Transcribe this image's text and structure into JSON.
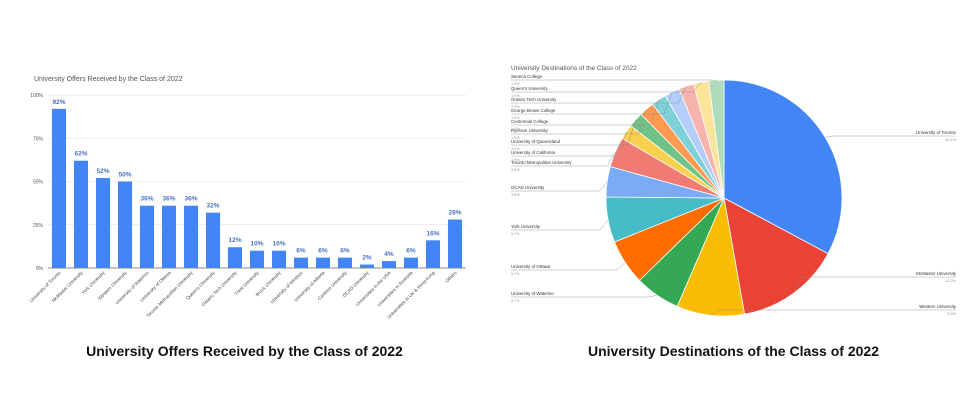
{
  "left": {
    "caption": "University Offers Received by the Class of 2022",
    "chart_data": {
      "type": "bar",
      "title": "University Offers Received by the Class of 2022",
      "xlabel": "",
      "ylabel": "",
      "ylim": [
        0,
        100
      ],
      "yticks": [
        "0%",
        "25%",
        "50%",
        "75%",
        "100%"
      ],
      "grid": true,
      "bar_color": "#4285f4",
      "categories": [
        "University of Toronto",
        "McMaster University",
        "York University",
        "Western University",
        "University of Waterloo",
        "University of Ottawa",
        "Toronto Metropolitan University",
        "Queen's University",
        "Ontario Tech University",
        "Trent University",
        "Brock University",
        "University of Windsor",
        "University of Alberta",
        "Carleton University",
        "OCAD University",
        "Universities in the USA",
        "Universities in Australia",
        "Universities in UK & Hong Kong",
        "Others"
      ],
      "values": [
        92,
        62,
        52,
        50,
        36,
        36,
        36,
        32,
        12,
        10,
        10,
        6,
        6,
        6,
        2,
        4,
        6,
        16,
        28
      ],
      "data_labels": [
        "92%",
        "62%",
        "52%",
        "50%",
        "36%",
        "36%",
        "36%",
        "32%",
        "12%",
        "10%",
        "10%",
        "6%",
        "6%",
        "6%",
        "2%",
        "4%",
        "6%",
        "16%",
        "28%"
      ]
    }
  },
  "right": {
    "caption": "University Destinations of the Class of 2022",
    "chart_data": {
      "type": "pie",
      "title": "University Destinations of the Class of 2022",
      "slices": [
        {
          "label": "University of Toronto",
          "value": 30.1,
          "pct": "30.1%",
          "color": "#4285f4"
        },
        {
          "label": "McMaster University",
          "value": 13.2,
          "pct": "13.2%",
          "color": "#ea4335"
        },
        {
          "label": "Western University",
          "value": 8.5,
          "pct": "8.5%",
          "color": "#fbbc04"
        },
        {
          "label": "University of Waterloo",
          "value": 5.7,
          "pct": "5.7%",
          "color": "#34a853"
        },
        {
          "label": "University of Ottawa",
          "value": 5.7,
          "pct": "5.7%",
          "color": "#ff6d01"
        },
        {
          "label": "York University",
          "value": 5.7,
          "pct": "5.7%",
          "color": "#46bdc6"
        },
        {
          "label": "OCAD University",
          "value": 3.8,
          "pct": "3.8%",
          "color": "#7baaf7"
        },
        {
          "label": "Toronto Metropolitan University",
          "value": 3.8,
          "pct": "3.8%",
          "color": "#f07b72"
        },
        {
          "label": "University of California",
          "value": 1.9,
          "pct": "1.9%",
          "color": "#fcd04f"
        },
        {
          "label": "University of Queensland",
          "value": 1.9,
          "pct": "1.9%",
          "color": "#71c287"
        },
        {
          "label": "Ryerson University",
          "value": 1.9,
          "pct": "1.9%",
          "color": "#ff994d"
        },
        {
          "label": "Centennial College",
          "value": 1.9,
          "pct": "1.9%",
          "color": "#7ed1d7"
        },
        {
          "label": "George Brown College",
          "value": 1.9,
          "pct": "1.9%",
          "color": "#b3cefb"
        },
        {
          "label": "Ontario Tech University",
          "value": 1.9,
          "pct": "1.9%",
          "color": "#f7b4ae"
        },
        {
          "label": "Queen's University",
          "value": 1.9,
          "pct": "1.9%",
          "color": "#fde49b"
        },
        {
          "label": "Seneca College",
          "value": 1.9,
          "pct": "1.9%",
          "color": "#aedcba"
        }
      ]
    }
  }
}
